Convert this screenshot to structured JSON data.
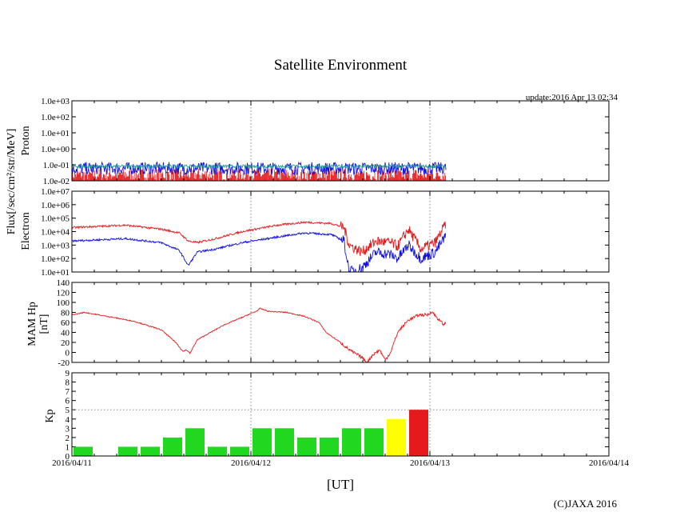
{
  "title": "Satellite Environment",
  "update": "update:2016 Apr 13 02:34",
  "copyright": "(C)JAXA 2016",
  "xlabel": "[UT]",
  "colors": {
    "red": "#e41a1c",
    "blue": "#1010e0",
    "green": "#1fd81f",
    "teal": "#1aa08a",
    "yellow": "#ffff00",
    "grid": "#888888"
  },
  "chart_data": [
    {
      "type": "line",
      "name": "proton",
      "ylabel_shared": "Flux[/sec/cm²/str/MeV]",
      "ylabel": "Proton",
      "yscale": "log",
      "ylim": [
        0.01,
        1000
      ],
      "ytick_labels": [
        "1.0e+03",
        "1.0e+02",
        "1.0e+01",
        "1.0e+00",
        "1.0e-01",
        "1.0e-02"
      ],
      "ytick_values": [
        1000,
        100,
        10,
        1,
        0.1,
        0.01
      ],
      "x_range_days": [
        0,
        3
      ],
      "data_end_day": 2.09,
      "series": [
        {
          "name": "channel-1",
          "color": "blue",
          "typical": 0.06,
          "min": 0.02,
          "max": 0.12
        },
        {
          "name": "channel-2",
          "color": "teal",
          "typical": 0.08,
          "min": 0.05,
          "max": 0.12
        },
        {
          "name": "channel-3",
          "color": "red",
          "typical": 0.03,
          "min": 0.01,
          "max": 0.06
        }
      ]
    },
    {
      "type": "line",
      "name": "electron",
      "ylabel": "Electron",
      "yscale": "log",
      "ylim": [
        10,
        10000000
      ],
      "ytick_labels": [
        "1.0e+07",
        "1.0e+06",
        "1.0e+05",
        "1.0e+04",
        "1.0e+03",
        "1.0e+02",
        "1.0e+01"
      ],
      "ytick_values": [
        10000000,
        1000000,
        100000,
        10000,
        1000,
        100,
        10
      ],
      "x_range_days": [
        0,
        3
      ],
      "series": [
        {
          "name": "high-flux",
          "color": "red",
          "points": [
            [
              0,
              20000
            ],
            [
              0.3,
              30000
            ],
            [
              0.5,
              15000
            ],
            [
              0.6,
              8000
            ],
            [
              0.65,
              2000
            ],
            [
              0.7,
              1500
            ],
            [
              0.8,
              3000
            ],
            [
              0.95,
              10000
            ],
            [
              1.15,
              30000
            ],
            [
              1.3,
              50000
            ],
            [
              1.45,
              40000
            ],
            [
              1.52,
              20000
            ],
            [
              1.55,
              1000
            ],
            [
              1.62,
              300
            ],
            [
              1.7,
              2000
            ],
            [
              1.78,
              1500
            ],
            [
              1.82,
              800
            ],
            [
              1.88,
              15000
            ],
            [
              1.95,
              500
            ],
            [
              2.03,
              1500
            ],
            [
              2.09,
              40000
            ]
          ]
        },
        {
          "name": "low-flux",
          "color": "blue",
          "points": [
            [
              0,
              2000
            ],
            [
              0.3,
              3000
            ],
            [
              0.5,
              1500
            ],
            [
              0.6,
              400
            ],
            [
              0.65,
              30
            ],
            [
              0.7,
              300
            ],
            [
              0.8,
              500
            ],
            [
              0.95,
              1500
            ],
            [
              1.15,
              4000
            ],
            [
              1.3,
              8000
            ],
            [
              1.45,
              6000
            ],
            [
              1.52,
              2000
            ],
            [
              1.55,
              10
            ],
            [
              1.62,
              20
            ],
            [
              1.7,
              300
            ],
            [
              1.78,
              200
            ],
            [
              1.82,
              100
            ],
            [
              1.88,
              1000
            ],
            [
              1.95,
              100
            ],
            [
              2.03,
              300
            ],
            [
              2.09,
              5000
            ]
          ]
        }
      ]
    },
    {
      "type": "line",
      "name": "magnetic-field",
      "ylabel": "MAM Hp",
      "ylabel2": "[nT]",
      "ylim": [
        -20,
        140
      ],
      "ytick_labels": [
        "140",
        "120",
        "100",
        "80",
        "60",
        "40",
        "20",
        "0",
        "-20"
      ],
      "ytick_values": [
        140,
        120,
        100,
        80,
        60,
        40,
        20,
        0,
        -20
      ],
      "x_range_days": [
        0,
        3
      ],
      "series": [
        {
          "name": "Hp",
          "color": "red",
          "points": [
            [
              0,
              75
            ],
            [
              0.07,
              80
            ],
            [
              0.2,
              72
            ],
            [
              0.35,
              62
            ],
            [
              0.5,
              45
            ],
            [
              0.58,
              20
            ],
            [
              0.62,
              2
            ],
            [
              0.64,
              5
            ],
            [
              0.66,
              -2
            ],
            [
              0.68,
              12
            ],
            [
              0.7,
              25
            ],
            [
              0.75,
              35
            ],
            [
              0.85,
              55
            ],
            [
              0.95,
              70
            ],
            [
              1.0,
              78
            ],
            [
              1.03,
              82
            ],
            [
              1.05,
              88
            ],
            [
              1.1,
              82
            ],
            [
              1.2,
              80
            ],
            [
              1.3,
              72
            ],
            [
              1.38,
              60
            ],
            [
              1.42,
              40
            ],
            [
              1.5,
              20
            ],
            [
              1.55,
              5
            ],
            [
              1.62,
              -10
            ],
            [
              1.65,
              -20
            ],
            [
              1.68,
              -5
            ],
            [
              1.72,
              5
            ],
            [
              1.75,
              -15
            ],
            [
              1.78,
              0
            ],
            [
              1.82,
              40
            ],
            [
              1.88,
              65
            ],
            [
              1.94,
              75
            ],
            [
              1.99,
              75
            ],
            [
              2.01,
              82
            ],
            [
              2.05,
              65
            ],
            [
              2.08,
              55
            ],
            [
              2.09,
              62
            ]
          ]
        }
      ]
    },
    {
      "type": "bar",
      "name": "kp-index",
      "ylabel": "Kp",
      "ylim": [
        0,
        9
      ],
      "ytick_labels": [
        "9",
        "8",
        "7",
        "6",
        "5",
        "4",
        "3",
        "2",
        "1",
        "0"
      ],
      "ytick_values": [
        9,
        8,
        7,
        6,
        5,
        4,
        3,
        2,
        1,
        0
      ],
      "x_range_days": [
        0,
        3
      ],
      "bar_width_days": 0.125,
      "bars": [
        {
          "start": 0.0,
          "value": 1,
          "color": "green"
        },
        {
          "start": 0.25,
          "value": 1,
          "color": "green"
        },
        {
          "start": 0.375,
          "value": 1,
          "color": "green"
        },
        {
          "start": 0.5,
          "value": 2,
          "color": "green"
        },
        {
          "start": 0.625,
          "value": 3,
          "color": "green"
        },
        {
          "start": 0.75,
          "value": 1,
          "color": "green"
        },
        {
          "start": 0.875,
          "value": 1,
          "color": "green"
        },
        {
          "start": 1.0,
          "value": 3,
          "color": "green"
        },
        {
          "start": 1.125,
          "value": 3,
          "color": "green"
        },
        {
          "start": 1.25,
          "value": 2,
          "color": "green"
        },
        {
          "start": 1.375,
          "value": 2,
          "color": "green"
        },
        {
          "start": 1.5,
          "value": 3,
          "color": "green"
        },
        {
          "start": 1.625,
          "value": 3,
          "color": "green"
        },
        {
          "start": 1.75,
          "value": 4,
          "color": "yellow"
        },
        {
          "start": 1.875,
          "value": 5,
          "color": "red"
        }
      ]
    }
  ],
  "xticks": [
    "2016/04/11",
    "2016/04/12",
    "2016/04/13",
    "2016/04/14"
  ]
}
